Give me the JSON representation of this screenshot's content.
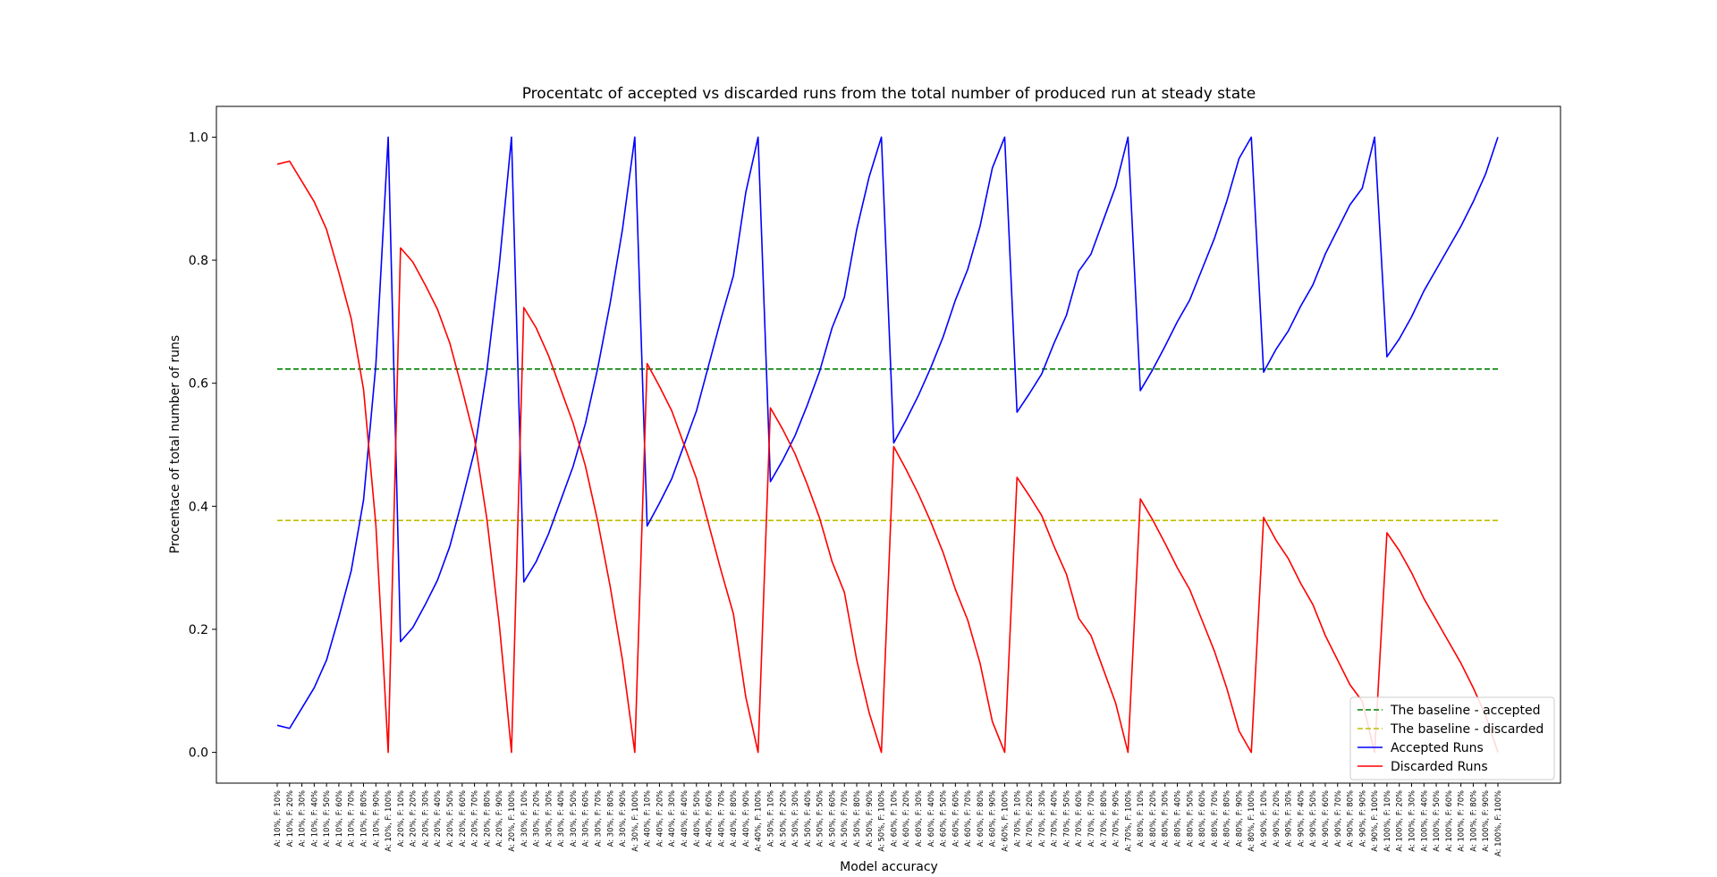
{
  "chart_data": {
    "type": "line",
    "title": "Procentatc of accepted vs discarded runs from the total number of produced run at steady state",
    "xlabel": "Model accuracy",
    "ylabel": "Procentace of total number of runs",
    "ylim": [
      -0.05,
      1.05
    ],
    "yticks": [
      "0.0",
      "0.2",
      "0.4",
      "0.6",
      "0.8",
      "1.0"
    ],
    "grid": false,
    "legend_position": "lower right",
    "categories": [
      "A: 10%, F: 10%",
      "A: 10%, F: 20%",
      "A: 10%, F: 30%",
      "A: 10%, F: 40%",
      "A: 10%, F: 50%",
      "A: 10%, F: 60%",
      "A: 10%, F: 70%",
      "A: 10%, F: 80%",
      "A: 10%, F: 90%",
      "A: 10%, F: 100%",
      "A: 20%, F: 10%",
      "A: 20%, F: 20%",
      "A: 20%, F: 30%",
      "A: 20%, F: 40%",
      "A: 20%, F: 50%",
      "A: 20%, F: 60%",
      "A: 20%, F: 70%",
      "A: 20%, F: 80%",
      "A: 20%, F: 90%",
      "A: 20%, F: 100%",
      "A: 30%, F: 10%",
      "A: 30%, F: 20%",
      "A: 30%, F: 30%",
      "A: 30%, F: 40%",
      "A: 30%, F: 50%",
      "A: 30%, F: 60%",
      "A: 30%, F: 70%",
      "A: 30%, F: 80%",
      "A: 30%, F: 90%",
      "A: 30%, F: 100%",
      "A: 40%, F: 10%",
      "A: 40%, F: 20%",
      "A: 40%, F: 30%",
      "A: 40%, F: 40%",
      "A: 40%, F: 50%",
      "A: 40%, F: 60%",
      "A: 40%, F: 70%",
      "A: 40%, F: 80%",
      "A: 40%, F: 90%",
      "A: 40%, F: 100%",
      "A: 50%, F: 10%",
      "A: 50%, F: 20%",
      "A: 50%, F: 30%",
      "A: 50%, F: 40%",
      "A: 50%, F: 50%",
      "A: 50%, F: 60%",
      "A: 50%, F: 70%",
      "A: 50%, F: 80%",
      "A: 50%, F: 90%",
      "A: 50%, F: 100%",
      "A: 60%, F: 10%",
      "A: 60%, F: 20%",
      "A: 60%, F: 30%",
      "A: 60%, F: 40%",
      "A: 60%, F: 50%",
      "A: 60%, F: 60%",
      "A: 60%, F: 70%",
      "A: 60%, F: 80%",
      "A: 60%, F: 90%",
      "A: 60%, F: 100%",
      "A: 70%, F: 10%",
      "A: 70%, F: 20%",
      "A: 70%, F: 30%",
      "A: 70%, F: 40%",
      "A: 70%, F: 50%",
      "A: 70%, F: 60%",
      "A: 70%, F: 70%",
      "A: 70%, F: 80%",
      "A: 70%, F: 90%",
      "A: 70%, F: 100%",
      "A: 80%, F: 10%",
      "A: 80%, F: 20%",
      "A: 80%, F: 30%",
      "A: 80%, F: 40%",
      "A: 80%, F: 50%",
      "A: 80%, F: 60%",
      "A: 80%, F: 70%",
      "A: 80%, F: 80%",
      "A: 80%, F: 90%",
      "A: 80%, F: 100%",
      "A: 90%, F: 10%",
      "A: 90%, F: 20%",
      "A: 90%, F: 30%",
      "A: 90%, F: 40%",
      "A: 90%, F: 50%",
      "A: 90%, F: 60%",
      "A: 90%, F: 70%",
      "A: 90%, F: 80%",
      "A: 90%, F: 90%",
      "A: 90%, F: 100%",
      "A: 100%, F: 10%",
      "A: 100%, F: 20%",
      "A: 100%, F: 30%",
      "A: 100%, F: 40%",
      "A: 100%, F: 50%",
      "A: 100%, F: 60%",
      "A: 100%, F: 70%",
      "A: 100%, F: 80%",
      "A: 100%, F: 90%",
      "A: 100%, F: 100%"
    ],
    "series": [
      {
        "name": "The baseline - accepted",
        "color": "#008000",
        "style": "dashed",
        "constant": 0.623
      },
      {
        "name": "The baseline - discarded",
        "color": "#bfbf00",
        "style": "dashed",
        "constant": 0.377
      },
      {
        "name": "Accepted Runs",
        "color": "#0000ff",
        "style": "solid",
        "values": [
          0.044,
          0.039,
          0.072,
          0.105,
          0.15,
          0.22,
          0.295,
          0.41,
          0.63,
          1.0,
          0.18,
          0.203,
          0.24,
          0.28,
          0.335,
          0.41,
          0.49,
          0.62,
          0.79,
          1.0,
          0.277,
          0.31,
          0.355,
          0.41,
          0.465,
          0.535,
          0.625,
          0.73,
          0.85,
          1.0,
          0.368,
          0.405,
          0.445,
          0.5,
          0.555,
          0.63,
          0.705,
          0.775,
          0.91,
          1.0,
          0.44,
          0.475,
          0.515,
          0.565,
          0.62,
          0.69,
          0.74,
          0.85,
          0.935,
          1.0,
          0.503,
          0.54,
          0.58,
          0.625,
          0.675,
          0.735,
          0.785,
          0.855,
          0.95,
          1.0,
          0.553,
          0.583,
          0.615,
          0.665,
          0.71,
          0.782,
          0.81,
          0.865,
          0.92,
          1.0,
          0.588,
          0.622,
          0.66,
          0.7,
          0.735,
          0.785,
          0.835,
          0.895,
          0.965,
          1.0,
          0.618,
          0.655,
          0.685,
          0.725,
          0.76,
          0.81,
          0.85,
          0.89,
          0.917,
          1.0,
          0.643,
          0.672,
          0.708,
          0.75,
          0.785,
          0.82,
          0.855,
          0.895,
          0.94,
          1.0
        ]
      },
      {
        "name": "Discarded Runs",
        "color": "#ff0000",
        "style": "solid",
        "values": [
          0.956,
          0.961,
          0.928,
          0.895,
          0.85,
          0.78,
          0.705,
          0.59,
          0.37,
          0.0,
          0.82,
          0.797,
          0.76,
          0.72,
          0.665,
          0.59,
          0.51,
          0.38,
          0.21,
          0.0,
          0.723,
          0.69,
          0.645,
          0.59,
          0.535,
          0.465,
          0.375,
          0.27,
          0.15,
          0.0,
          0.632,
          0.595,
          0.555,
          0.5,
          0.445,
          0.37,
          0.295,
          0.225,
          0.09,
          0.0,
          0.56,
          0.525,
          0.485,
          0.435,
          0.38,
          0.31,
          0.26,
          0.15,
          0.065,
          0.0,
          0.497,
          0.46,
          0.42,
          0.375,
          0.325,
          0.265,
          0.215,
          0.145,
          0.05,
          0.0,
          0.447,
          0.417,
          0.385,
          0.335,
          0.29,
          0.218,
          0.19,
          0.135,
          0.08,
          0.0,
          0.412,
          0.378,
          0.34,
          0.3,
          0.265,
          0.215,
          0.165,
          0.105,
          0.035,
          0.0,
          0.382,
          0.345,
          0.315,
          0.275,
          0.24,
          0.19,
          0.15,
          0.11,
          0.083,
          0.0,
          0.357,
          0.328,
          0.292,
          0.25,
          0.215,
          0.18,
          0.145,
          0.105,
          0.06,
          0.0
        ]
      }
    ]
  }
}
